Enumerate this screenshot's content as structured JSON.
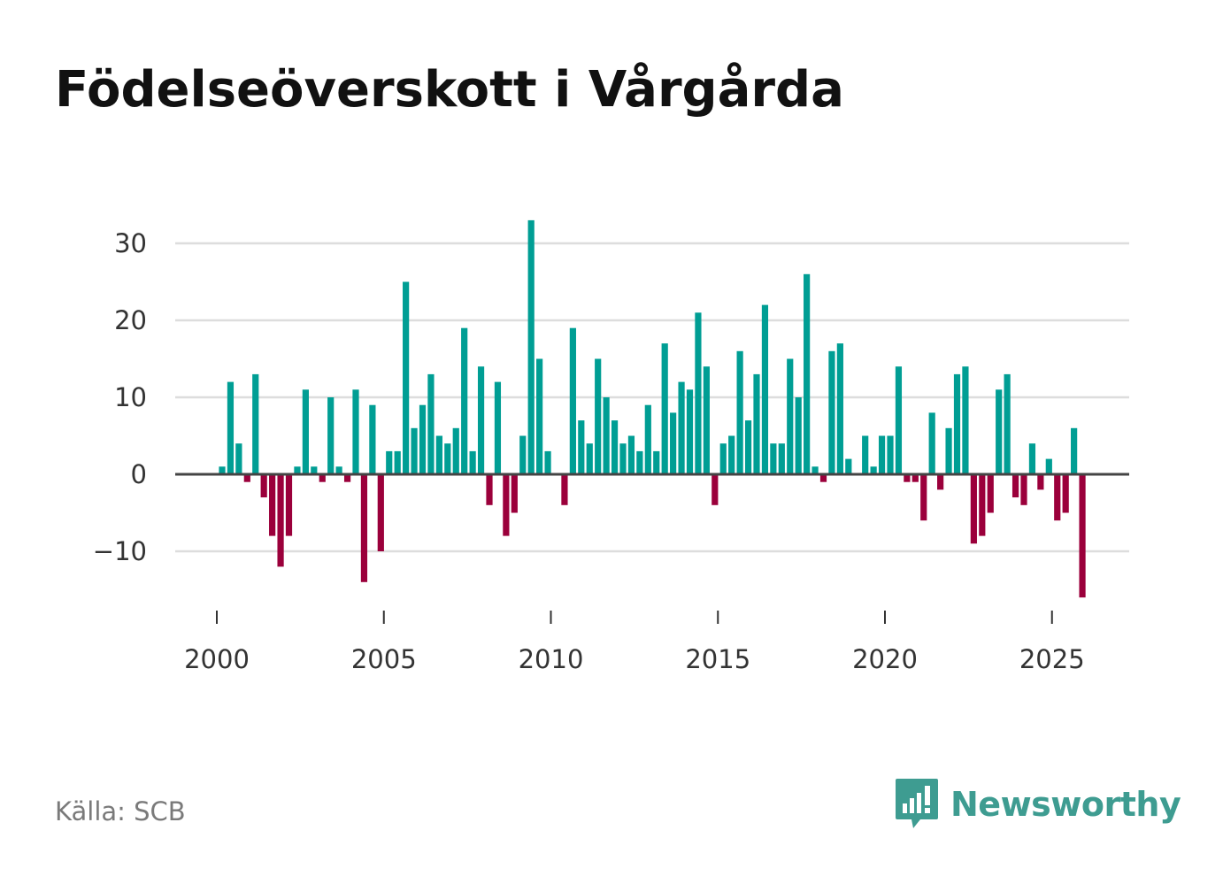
{
  "title": "Födelseöverskott i Vårgårda",
  "source": "Källa: SCB",
  "brand": "Newsworthy",
  "icons": {
    "logo": "newsworthy-chart-bubble-icon"
  },
  "colors": {
    "positive": "#009e94",
    "negative": "#9b003b",
    "grid": "#dddddd",
    "baseline": "#444444",
    "brand": "#3e9c91"
  },
  "chart_data": {
    "type": "bar",
    "title": "Födelseöverskott i Vårgårda",
    "xlabel": "",
    "ylabel": "",
    "x_ticks": [
      2000,
      2005,
      2010,
      2015,
      2020,
      2025
    ],
    "y_ticks": [
      30,
      20,
      10,
      0,
      -10
    ],
    "y_tick_labels": [
      "30",
      "20",
      "10",
      "0",
      "−10"
    ],
    "ylim": [
      -17,
      33
    ],
    "xlim": [
      1999.0,
      2027.0
    ],
    "start": 2000.0,
    "step": 0.25,
    "values": [
      1,
      12,
      4,
      -1,
      13,
      -3,
      -8,
      -12,
      -8,
      1,
      11,
      1,
      -1,
      10,
      1,
      -1,
      11,
      -14,
      9,
      -10,
      3,
      3,
      25,
      6,
      9,
      13,
      5,
      4,
      6,
      19,
      3,
      14,
      -4,
      12,
      -8,
      -5,
      5,
      33,
      15,
      3,
      0,
      -4,
      19,
      7,
      4,
      15,
      10,
      7,
      4,
      5,
      3,
      9,
      3,
      17,
      8,
      12,
      11,
      21,
      14,
      -4,
      4,
      5,
      16,
      7,
      13,
      22,
      4,
      4,
      15,
      10,
      26,
      1,
      -1,
      16,
      17,
      2,
      0,
      5,
      1,
      5,
      5,
      14,
      -1,
      -1,
      -6,
      8,
      -2,
      6,
      13,
      14,
      -9,
      -8,
      -5,
      11,
      13,
      -3,
      -4,
      4,
      -2,
      2,
      -6,
      -5,
      6,
      -16
    ]
  }
}
